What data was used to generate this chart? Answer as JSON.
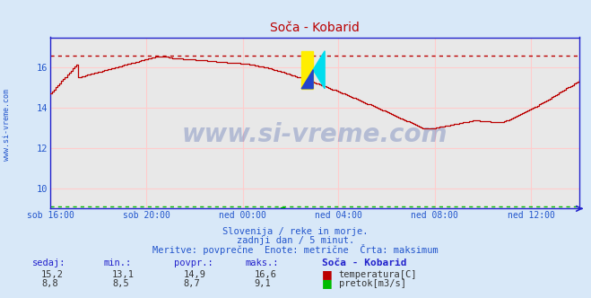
{
  "title": "Soča - Kobarid",
  "bg_color": "#d8e8f8",
  "plot_bg_color": "#e8e8e8",
  "grid_color": "#ffcccc",
  "x_labels": [
    "sob 16:00",
    "sob 20:00",
    "ned 00:00",
    "ned 04:00",
    "ned 08:00",
    "ned 12:00"
  ],
  "x_ticks_norm": [
    0.0,
    0.182,
    0.364,
    0.545,
    0.727,
    0.909
  ],
  "ylim": [
    9.0,
    17.5
  ],
  "yticks": [
    10,
    12,
    14,
    16
  ],
  "temp_max_line": 16.6,
  "flow_max_line": 9.1,
  "temp_color": "#bb0000",
  "flow_color": "#00bb00",
  "axis_color": "#2222cc",
  "text_color": "#2255cc",
  "subtitle1": "Slovenija / reke in morje.",
  "subtitle2": "zadnji dan / 5 minut.",
  "subtitle3": "Meritve: povprečne  Enote: metrične  Črta: maksimum",
  "table_headers": [
    "sedaj:",
    "min.:",
    "povpr.:",
    "maks.:",
    "Soča - Kobarid"
  ],
  "row1": [
    "15,2",
    "13,1",
    "14,9",
    "16,6",
    "temperatura[C]"
  ],
  "row2": [
    "8,8",
    "8,5",
    "8,7",
    "9,1",
    "pretok[m3/s]"
  ]
}
